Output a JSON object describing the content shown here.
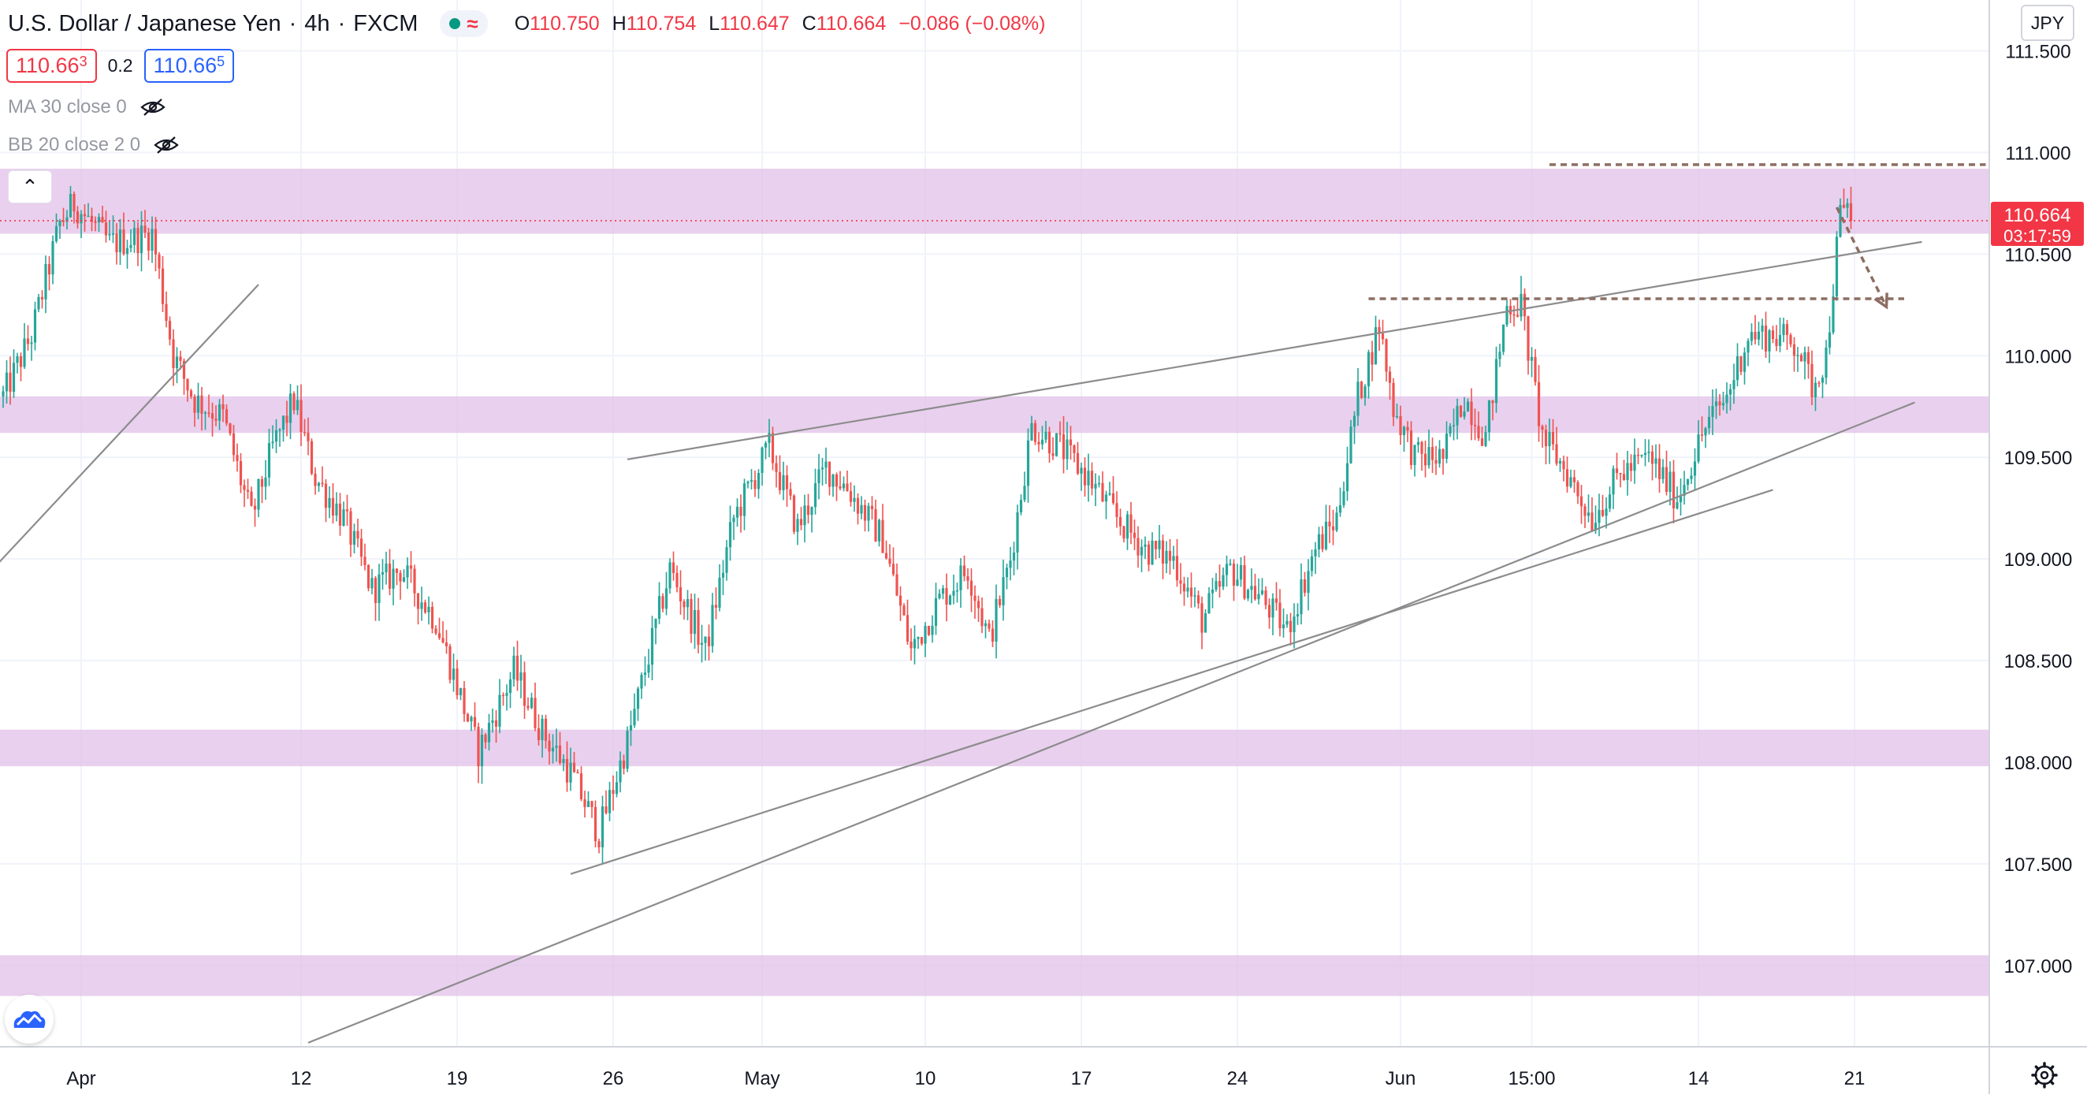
{
  "header": {
    "symbol": "U.S. Dollar / Japanese Yen",
    "interval": "4h",
    "source": "FXCM",
    "ohlc": {
      "open": "110.750",
      "high": "110.754",
      "low": "110.647",
      "close": "110.664",
      "change": "−0.086 (−0.08%)"
    },
    "labels": {
      "open": "O",
      "high": "H",
      "low": "L",
      "close": "C"
    },
    "status_color": "#089981"
  },
  "quote": {
    "bid_main": "110.66",
    "bid_sup": "3",
    "spread": "0.2",
    "ask_main": "110.66",
    "ask_sup": "5"
  },
  "indicators": [
    {
      "label": "MA 30 close 0",
      "icon": "eye-hidden-icon"
    },
    {
      "label": "BB 20 close 2 0",
      "icon": "eye-hidden-icon"
    }
  ],
  "currency": "JPY",
  "last_price": {
    "value": "110.664",
    "countdown": "03:17:59",
    "color": "#f23645"
  },
  "colors": {
    "up": "#26a69a",
    "down": "#ef5350",
    "zone": "#e1bee7",
    "trendline": "#8c8c8c",
    "dashed": "#8d6e63"
  },
  "chart_data": {
    "type": "candlestick",
    "title": "U.S. Dollar / Japanese Yen",
    "ylim": [
      106.6,
      111.75
    ],
    "y_ticks": [
      107.0,
      107.5,
      108.0,
      108.5,
      109.0,
      109.5,
      110.0,
      110.5,
      111.0,
      111.5
    ],
    "y_tick_labels": [
      "107.000",
      "107.500",
      "108.000",
      "108.500",
      "109.000",
      "109.500",
      "110.000",
      "110.500",
      "111.000",
      "111.500"
    ],
    "x_ticks": [
      "Apr",
      "12",
      "19",
      "26",
      "May",
      "10",
      "17",
      "24",
      "Jun",
      "15:00",
      "14",
      "21"
    ],
    "x_tick_index": [
      22,
      84,
      128,
      172,
      214,
      260,
      304,
      348,
      394,
      431,
      478,
      522
    ],
    "zones": [
      [
        110.6,
        110.92
      ],
      [
        109.62,
        109.8
      ],
      [
        107.98,
        108.16
      ],
      [
        106.85,
        107.05
      ]
    ],
    "trendlines": [
      {
        "from": [
          -4,
          108.93
        ],
        "to": [
          72,
          110.35
        ]
      },
      {
        "from": [
          176,
          109.49
        ],
        "to": [
          541,
          110.56
        ]
      },
      {
        "from": [
          160,
          107.45
        ],
        "to": [
          499,
          109.34
        ]
      },
      {
        "from": [
          86,
          106.62
        ],
        "to": [
          539,
          109.77
        ]
      }
    ],
    "dashed_lines": [
      {
        "from": [
          436,
          110.94
        ],
        "to": [
          559,
          110.94
        ]
      },
      {
        "from": [
          385,
          110.28
        ],
        "to": [
          536,
          110.28
        ]
      }
    ],
    "arrow": {
      "from": [
        517,
        110.73
      ],
      "to": [
        531,
        110.24
      ]
    },
    "price_line": 110.664,
    "pivots": [
      [
        0,
        109.8
      ],
      [
        8,
        110.1
      ],
      [
        16,
        110.65
      ],
      [
        20,
        110.75
      ],
      [
        30,
        110.55
      ],
      [
        42,
        110.6
      ],
      [
        48,
        110.0
      ],
      [
        54,
        109.78
      ],
      [
        62,
        109.7
      ],
      [
        70,
        109.2
      ],
      [
        76,
        109.55
      ],
      [
        82,
        109.78
      ],
      [
        88,
        109.4
      ],
      [
        96,
        109.2
      ],
      [
        104,
        108.85
      ],
      [
        112,
        108.95
      ],
      [
        122,
        108.7
      ],
      [
        134,
        108.05
      ],
      [
        144,
        108.45
      ],
      [
        152,
        108.15
      ],
      [
        160,
        107.95
      ],
      [
        168,
        107.65
      ],
      [
        176,
        108.1
      ],
      [
        188,
        108.95
      ],
      [
        198,
        108.55
      ],
      [
        206,
        109.2
      ],
      [
        216,
        109.55
      ],
      [
        224,
        109.15
      ],
      [
        232,
        109.45
      ],
      [
        238,
        109.35
      ],
      [
        248,
        109.1
      ],
      [
        256,
        108.55
      ],
      [
        264,
        108.8
      ],
      [
        272,
        108.95
      ],
      [
        278,
        108.6
      ],
      [
        284,
        109.0
      ],
      [
        290,
        109.65
      ],
      [
        298,
        109.55
      ],
      [
        306,
        109.4
      ],
      [
        314,
        109.2
      ],
      [
        322,
        109.05
      ],
      [
        330,
        109.0
      ],
      [
        338,
        108.7
      ],
      [
        346,
        108.95
      ],
      [
        354,
        108.82
      ],
      [
        362,
        108.65
      ],
      [
        370,
        109.05
      ],
      [
        376,
        109.2
      ],
      [
        382,
        109.8
      ],
      [
        388,
        110.15
      ],
      [
        392,
        109.75
      ],
      [
        398,
        109.5
      ],
      [
        406,
        109.5
      ],
      [
        412,
        109.8
      ],
      [
        418,
        109.6
      ],
      [
        424,
        110.25
      ],
      [
        428,
        110.25
      ],
      [
        434,
        109.6
      ],
      [
        440,
        109.45
      ],
      [
        448,
        109.2
      ],
      [
        456,
        109.42
      ],
      [
        464,
        109.5
      ],
      [
        472,
        109.3
      ],
      [
        480,
        109.65
      ],
      [
        486,
        109.8
      ],
      [
        492,
        110.1
      ],
      [
        500,
        110.1
      ],
      [
        506,
        110.05
      ],
      [
        510,
        109.85
      ],
      [
        514,
        110.0
      ],
      [
        518,
        110.7
      ],
      [
        521,
        110.664
      ]
    ]
  }
}
